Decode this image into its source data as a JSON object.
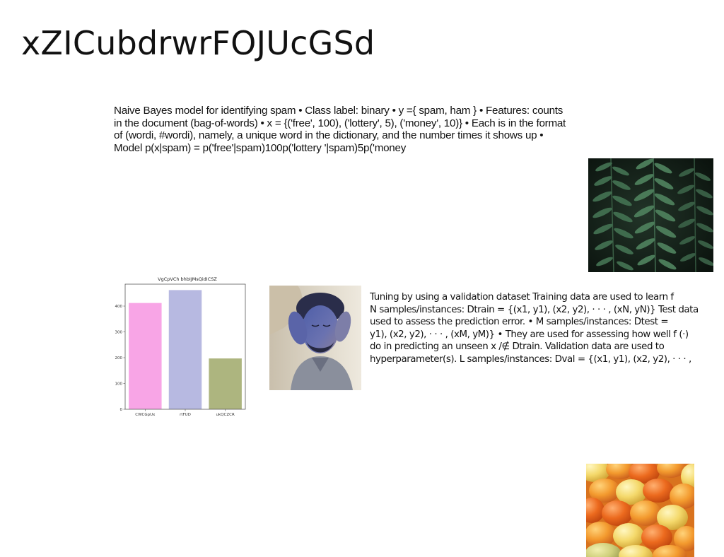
{
  "slide": {
    "title": "xZICubdrwrFOJUcGSd"
  },
  "text_block_1": "Naive Bayes model for identifying spam • Class label: binary • y ={ spam, ham } • Features: counts in the document (bag-of-words) • x = {('free', 100), ('lottery', 5), ('money', 10)} • Each is in the format of (wordi, #wordi), namely, a unique word in the dictionary, and the number times it shows up • Model p(x|spam) = p('free'|spam)100p('lottery '|spam)5p('money",
  "text_block_2": {
    "lines": [
      "Tuning by using a validation dataset Training data are used to learn f",
      "N samples/instances: Dtrain = {(x1, y1), (x2, y2), · · · , (xN, yN)} Test data",
      "used to assess the prediction error. • M samples/instances: Dtest =",
      "y1), (x2, y2), · · · , (xM, yM)} • They are used for assessing how well f (·)",
      "do in predicting an unseen x /∉ Dtrain. Validation data are used to",
      "hyperparameter(s). L samples/instances: Dval = {(x1, y1), (x2, y2), · · · ,"
    ]
  },
  "images": {
    "fern": "fern-leaves-photo",
    "portrait": "man-with-hands-on-face-photo",
    "blobs": "orange-yellow-3d-blobs-render"
  },
  "chart_data": {
    "type": "bar",
    "title": "VgCpVCh bhbIJMsQidICSZ",
    "categories": [
      "CWCGpUx",
      "rtFUD",
      "ukQCZCR"
    ],
    "values": [
      412,
      462,
      197
    ],
    "colors": [
      "#f8a5e6",
      "#b7b9e1",
      "#adb57f"
    ],
    "yticks": [
      0,
      100,
      200,
      300,
      400
    ],
    "ylim": [
      0,
      485
    ],
    "xlabel": "",
    "ylabel": "",
    "grid": false
  }
}
